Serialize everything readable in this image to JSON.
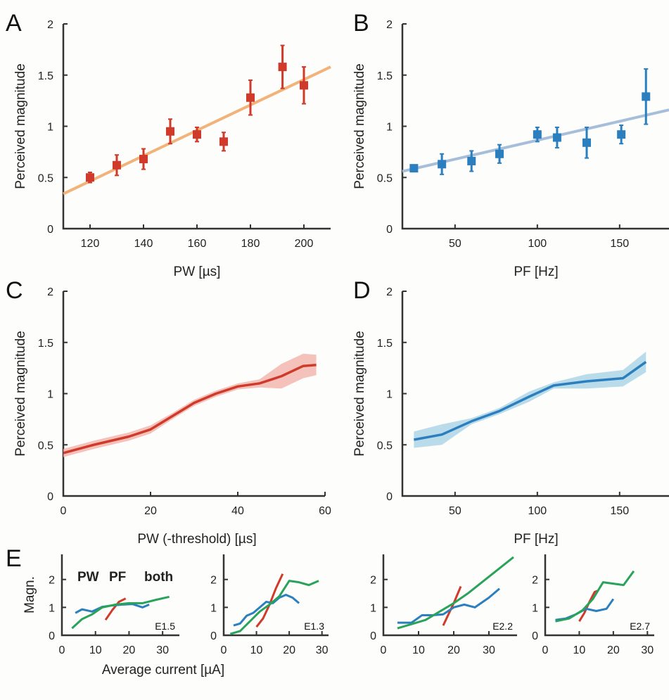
{
  "chart_data": [
    {
      "panel": "A",
      "type": "scatter",
      "xlabel": "PW [µs]",
      "ylabel": "Perceived magnitude",
      "xlim": [
        110,
        210
      ],
      "ylim": [
        0,
        2
      ],
      "xticks": [
        120,
        140,
        160,
        180,
        200
      ],
      "yticks": [
        0,
        0.5,
        1,
        1.5,
        2
      ],
      "x": [
        120,
        130,
        140,
        150,
        160,
        170,
        180,
        192,
        200
      ],
      "y": [
        0.5,
        0.62,
        0.68,
        0.95,
        0.92,
        0.85,
        1.28,
        1.58,
        1.4
      ],
      "err": [
        0.05,
        0.1,
        0.1,
        0.12,
        0.07,
        0.09,
        0.17,
        0.21,
        0.18
      ],
      "fit": {
        "x": [
          110,
          210
        ],
        "y": [
          0.34,
          1.58
        ]
      },
      "marker_color": "#d03a2a",
      "fit_color": "#f2b37a"
    },
    {
      "panel": "B",
      "type": "scatter",
      "xlabel": "PF [Hz]",
      "ylabel": "Perceived magnitude",
      "xlim": [
        18,
        180
      ],
      "ylim": [
        0,
        2
      ],
      "xticks": [
        50,
        100,
        150
      ],
      "yticks": [
        0,
        0.5,
        1,
        1.5,
        2
      ],
      "x": [
        25,
        42,
        60,
        77,
        100,
        112,
        130,
        151,
        166
      ],
      "y": [
        0.59,
        0.63,
        0.66,
        0.73,
        0.92,
        0.89,
        0.84,
        0.92,
        1.29
      ],
      "err": [
        0.02,
        0.1,
        0.1,
        0.09,
        0.07,
        0.1,
        0.15,
        0.09,
        0.27
      ],
      "fit": {
        "x": [
          18,
          180
        ],
        "y": [
          0.56,
          1.16
        ]
      },
      "marker_color": "#2b7fbf",
      "fit_color": "#a7bedb"
    },
    {
      "panel": "C",
      "type": "line",
      "xlabel": "PW (-threshold) [µs]",
      "ylabel": "Perceived magnitude",
      "xlim": [
        0,
        60
      ],
      "ylim": [
        0,
        2
      ],
      "xticks": [
        0,
        20,
        40,
        60
      ],
      "yticks": [
        0,
        0.5,
        1,
        1.5,
        2
      ],
      "x": [
        0,
        7,
        15,
        20,
        25,
        30,
        35,
        40,
        45,
        50,
        55,
        58
      ],
      "y": [
        0.42,
        0.5,
        0.58,
        0.65,
        0.78,
        0.91,
        1.0,
        1.07,
        1.1,
        1.17,
        1.27,
        1.28
      ],
      "band": [
        0.04,
        0.04,
        0.04,
        0.04,
        0.03,
        0.03,
        0.03,
        0.03,
        0.04,
        0.12,
        0.12,
        0.1
      ],
      "color": "#d03a2a",
      "band_color": "#f1b3ab"
    },
    {
      "panel": "D",
      "type": "line",
      "xlabel": "PF [Hz]",
      "ylabel": "Perceived magnitude",
      "xlim": [
        18,
        180
      ],
      "ylim": [
        0,
        2
      ],
      "xticks": [
        50,
        100,
        150
      ],
      "yticks": [
        0,
        0.5,
        1,
        1.5,
        2
      ],
      "x": [
        25,
        42,
        60,
        77,
        95,
        110,
        130,
        152,
        166
      ],
      "y": [
        0.55,
        0.6,
        0.73,
        0.83,
        0.97,
        1.08,
        1.12,
        1.15,
        1.31
      ],
      "band": [
        0.08,
        0.1,
        0.03,
        0.03,
        0.05,
        0.03,
        0.07,
        0.08,
        0.1
      ],
      "color": "#2b7fbf",
      "band_color": "#a9d3e6"
    },
    {
      "panel": "E1",
      "type": "line",
      "electrode": "E1.5",
      "xlim": [
        0,
        35
      ],
      "ylim": [
        0,
        2.9
      ],
      "xticks": [
        0,
        10,
        20,
        30
      ],
      "yticks": [
        0,
        1,
        2
      ],
      "ylabel": "Magn.",
      "xlabel": "Average current [µA]",
      "series": [
        {
          "name": "PW",
          "color": "#d03a2a",
          "x": [
            13,
            15,
            17,
            19
          ],
          "y": [
            0.55,
            0.9,
            1.2,
            1.32
          ]
        },
        {
          "name": "PF",
          "color": "#2b7fbf",
          "x": [
            4,
            6,
            9,
            12,
            15,
            18,
            21,
            24,
            26
          ],
          "y": [
            0.8,
            0.93,
            0.85,
            1.02,
            1.07,
            1.1,
            1.12,
            1.0,
            1.1
          ]
        },
        {
          "name": "both",
          "color": "#2aa35a",
          "x": [
            3,
            6,
            9,
            12,
            16,
            20,
            24,
            28,
            32
          ],
          "y": [
            0.25,
            0.58,
            0.75,
            1.0,
            1.1,
            1.15,
            1.15,
            1.27,
            1.38
          ]
        }
      ],
      "legend_labels": [
        "PW",
        "PF",
        "both"
      ]
    },
    {
      "panel": "E2",
      "type": "line",
      "electrode": "E1.3",
      "xlim": [
        0,
        32
      ],
      "ylim": [
        0,
        2.9
      ],
      "xticks": [
        0,
        10,
        20,
        30
      ],
      "yticks": [
        0,
        1,
        2
      ],
      "series": [
        {
          "name": "PW",
          "color": "#d03a2a",
          "x": [
            10,
            12,
            14,
            16,
            18
          ],
          "y": [
            0.3,
            0.6,
            1.1,
            1.7,
            2.2
          ]
        },
        {
          "name": "PF",
          "color": "#2b7fbf",
          "x": [
            3,
            5,
            7,
            9,
            11,
            13,
            15,
            17,
            19,
            21,
            23
          ],
          "y": [
            0.35,
            0.42,
            0.7,
            0.8,
            1.0,
            1.2,
            1.15,
            1.35,
            1.45,
            1.35,
            1.15
          ]
        },
        {
          "name": "both",
          "color": "#2aa35a",
          "x": [
            2,
            5,
            8,
            11,
            14,
            17,
            20,
            23,
            26,
            29
          ],
          "y": [
            0.05,
            0.15,
            0.5,
            0.85,
            1.1,
            1.4,
            1.95,
            1.9,
            1.8,
            1.95
          ]
        }
      ]
    },
    {
      "panel": "E3",
      "type": "line",
      "electrode": "E2.2",
      "xlim": [
        0,
        38
      ],
      "ylim": [
        0,
        2.9
      ],
      "xticks": [
        0,
        10,
        20,
        30
      ],
      "yticks": [
        0,
        1,
        2
      ],
      "series": [
        {
          "name": "PW",
          "color": "#d03a2a",
          "x": [
            17,
            18.5,
            20,
            21,
            22
          ],
          "y": [
            0.35,
            0.75,
            1.15,
            1.45,
            1.75
          ]
        },
        {
          "name": "PF",
          "color": "#2b7fbf",
          "x": [
            4,
            8,
            11,
            14,
            17,
            20,
            23,
            26,
            30,
            33
          ],
          "y": [
            0.45,
            0.45,
            0.72,
            0.72,
            0.75,
            1.0,
            1.1,
            1.0,
            1.35,
            1.67
          ]
        },
        {
          "name": "both",
          "color": "#2aa35a",
          "x": [
            4,
            8,
            12,
            16,
            20,
            24,
            28,
            32,
            37
          ],
          "y": [
            0.25,
            0.4,
            0.55,
            0.85,
            1.15,
            1.5,
            1.9,
            2.3,
            2.8
          ]
        }
      ]
    },
    {
      "panel": "E4",
      "type": "line",
      "electrode": "E2.7",
      "xlim": [
        0,
        32
      ],
      "ylim": [
        0,
        2.9
      ],
      "xticks": [
        0,
        10,
        20,
        30
      ],
      "yticks": [
        0,
        1,
        2
      ],
      "series": [
        {
          "name": "PW",
          "color": "#d03a2a",
          "x": [
            10,
            11.5,
            13,
            14.5,
            15.5
          ],
          "y": [
            0.5,
            0.8,
            1.2,
            1.55,
            1.6
          ]
        },
        {
          "name": "PF",
          "color": "#2b7fbf",
          "x": [
            3,
            6,
            9,
            12,
            15,
            18,
            20
          ],
          "y": [
            0.55,
            0.6,
            0.75,
            0.95,
            0.87,
            0.95,
            1.3
          ]
        },
        {
          "name": "both",
          "color": "#2aa35a",
          "x": [
            3,
            7,
            11,
            14,
            17,
            20,
            23,
            26
          ],
          "y": [
            0.5,
            0.6,
            0.9,
            1.3,
            1.9,
            1.85,
            1.8,
            2.3
          ]
        }
      ]
    }
  ],
  "panel_labels": [
    "A",
    "B",
    "C",
    "D",
    "E"
  ]
}
